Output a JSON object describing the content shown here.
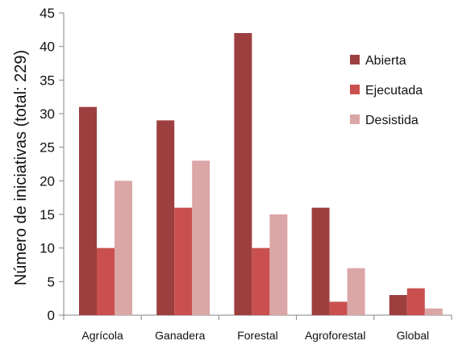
{
  "chart_data": {
    "type": "bar",
    "title": "",
    "xlabel": "",
    "ylabel": "Número de iniciativas (total: 229)",
    "ylim": [
      0,
      45
    ],
    "yticks": [
      0,
      5,
      10,
      15,
      20,
      25,
      30,
      35,
      40,
      45
    ],
    "grid": false,
    "legend_position": "right",
    "categories": [
      "Agrícola",
      "Ganadera",
      "Forestal",
      "Agroforestal",
      "Global"
    ],
    "series": [
      {
        "name": "Abierta",
        "color": "#9e3f3f",
        "values": [
          31,
          29,
          42,
          16,
          3
        ]
      },
      {
        "name": "Ejecutada",
        "color": "#c9504e",
        "values": [
          10,
          16,
          10,
          2,
          4
        ]
      },
      {
        "name": "Desistida",
        "color": "#dba6a6",
        "values": [
          20,
          23,
          15,
          7,
          1
        ]
      }
    ]
  }
}
